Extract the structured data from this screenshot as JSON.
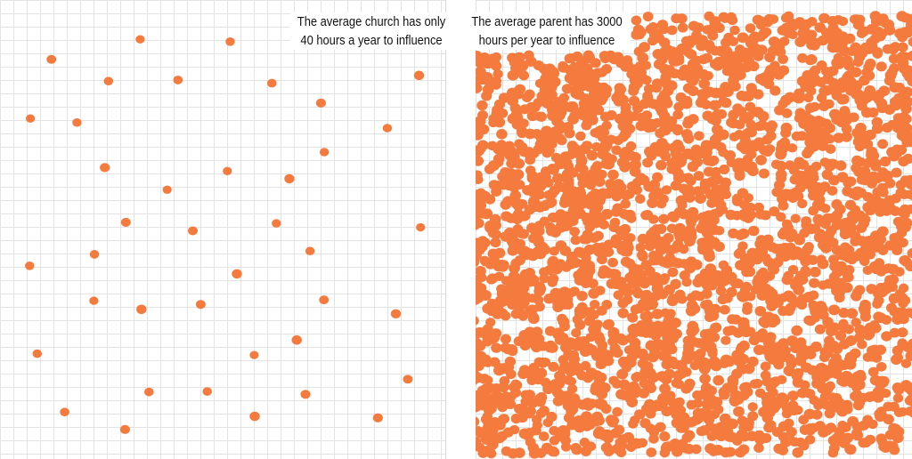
{
  "dot_color": "#f47a3e",
  "church": {
    "caption_line1": "The average church has only",
    "caption_line2": "40 hours a year to influence",
    "dot_count": 40
  },
  "parent": {
    "caption_line1": "The average parent has 3000",
    "caption_line2": "hours per year to influence",
    "dot_count": 3000
  }
}
